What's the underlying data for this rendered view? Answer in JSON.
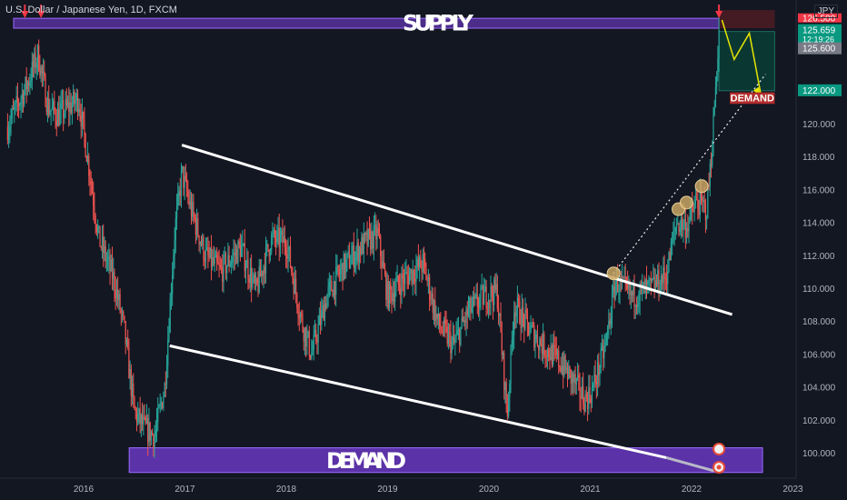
{
  "header": {
    "symbol_title": "U.S. Dollar / Japanese Yen, 1D, FXCM",
    "currency_tag": "JPY"
  },
  "labels": {
    "supply": "SUPPLY",
    "demand_bottom": "DEMAND",
    "demand_box": "DEMAND"
  },
  "price_scale": {
    "current_price": "125.659",
    "countdown": "12:19:26",
    "level_upper": "125.600",
    "level_target": "122.000",
    "level_top_hidden": "126.500"
  },
  "colors": {
    "background": "#131722",
    "up_candle": "#26a69a",
    "down_candle": "#ef5350",
    "zone": "#7b3fe0",
    "arrow": "#f23645",
    "channel": "#ffffff",
    "projection": "#e6e600",
    "target_box": "#0b3b35",
    "marker": "#c9a663"
  },
  "chart_data": {
    "type": "candlestick",
    "x_ticks": [
      "2016",
      "2017",
      "2018",
      "2019",
      "2020",
      "2021",
      "2022",
      "2023"
    ],
    "y_ticks": [
      "100.000",
      "102.000",
      "104.000",
      "106.000",
      "108.000",
      "110.000",
      "112.000",
      "114.000",
      "116.000",
      "118.000",
      "120.000",
      "122.000"
    ],
    "ylim": [
      98.6,
      127.3
    ],
    "xlim": [
      2015.25,
      2023.15
    ],
    "grid": false,
    "close_path": [
      [
        2015.25,
        119.8
      ],
      [
        2015.45,
        122.5
      ],
      [
        2015.55,
        124.2
      ],
      [
        2015.65,
        121.0
      ],
      [
        2015.75,
        120.5
      ],
      [
        2015.95,
        121.5
      ],
      [
        2016.05,
        117.5
      ],
      [
        2016.15,
        113.0
      ],
      [
        2016.3,
        110.5
      ],
      [
        2016.4,
        107.5
      ],
      [
        2016.5,
        102.5
      ],
      [
        2016.6,
        101.5
      ],
      [
        2016.7,
        101.0
      ],
      [
        2016.8,
        104.0
      ],
      [
        2016.9,
        113.5
      ],
      [
        2016.97,
        117.0
      ],
      [
        2017.05,
        115.0
      ],
      [
        2017.2,
        112.0
      ],
      [
        2017.35,
        111.0
      ],
      [
        2017.55,
        112.5
      ],
      [
        2017.7,
        109.8
      ],
      [
        2017.85,
        113.0
      ],
      [
        2018.0,
        112.8
      ],
      [
        2018.15,
        108.0
      ],
      [
        2018.25,
        106.0
      ],
      [
        2018.4,
        109.5
      ],
      [
        2018.55,
        111.2
      ],
      [
        2018.75,
        112.6
      ],
      [
        2018.9,
        113.3
      ],
      [
        2019.0,
        109.5
      ],
      [
        2019.15,
        110.5
      ],
      [
        2019.35,
        111.5
      ],
      [
        2019.5,
        107.8
      ],
      [
        2019.65,
        106.5
      ],
      [
        2019.8,
        108.6
      ],
      [
        2019.95,
        109.5
      ],
      [
        2020.08,
        109.8
      ],
      [
        2020.18,
        102.3
      ],
      [
        2020.25,
        109.0
      ],
      [
        2020.4,
        107.5
      ],
      [
        2020.55,
        106.4
      ],
      [
        2020.7,
        105.5
      ],
      [
        2020.85,
        104.2
      ],
      [
        2020.95,
        103.2
      ],
      [
        2021.02,
        103.8
      ],
      [
        2021.15,
        106.5
      ],
      [
        2021.25,
        110.5
      ],
      [
        2021.4,
        109.5
      ],
      [
        2021.6,
        110.0
      ],
      [
        2021.75,
        110.8
      ],
      [
        2021.85,
        114.0
      ],
      [
        2021.95,
        113.8
      ],
      [
        2022.05,
        115.2
      ],
      [
        2022.15,
        114.8
      ],
      [
        2022.2,
        118.5
      ],
      [
        2022.23,
        121.5
      ],
      [
        2022.27,
        125.66
      ]
    ]
  },
  "annotations": {
    "supply_zone": [
      125.8,
      126.4
    ],
    "demand_zone": [
      98.8,
      100.3
    ],
    "channel_upper": [
      [
        2016.97,
        118.7
      ],
      [
        2022.4,
        108.4
      ]
    ],
    "channel_lower": [
      [
        2016.85,
        106.5
      ],
      [
        2021.75,
        99.7
      ]
    ],
    "channel_lower_faded": [
      [
        2021.75,
        99.7
      ],
      [
        2022.22,
        98.9
      ]
    ],
    "breakout_projection": [
      [
        2021.23,
        110.9
      ],
      [
        2022.73,
        123.0
      ]
    ],
    "forecast_path": [
      [
        2022.3,
        126.3
      ],
      [
        2022.42,
        123.9
      ],
      [
        2022.57,
        125.5
      ],
      [
        2022.68,
        121.9
      ]
    ],
    "touch_markers": [
      [
        2021.23,
        110.9
      ],
      [
        2021.87,
        114.8
      ],
      [
        2021.95,
        115.2
      ],
      [
        2022.1,
        116.2
      ]
    ],
    "supply_arrows": [
      2015.42,
      2015.58,
      2022.27
    ],
    "target_box": {
      "x0": 2022.27,
      "x1": 2022.82,
      "y_top": 125.6,
      "y_bottom": 122.0
    },
    "demand_box": {
      "x0": 2022.27,
      "x1": 2022.82,
      "y_top": 121.9,
      "y_bottom": 121.2
    }
  }
}
